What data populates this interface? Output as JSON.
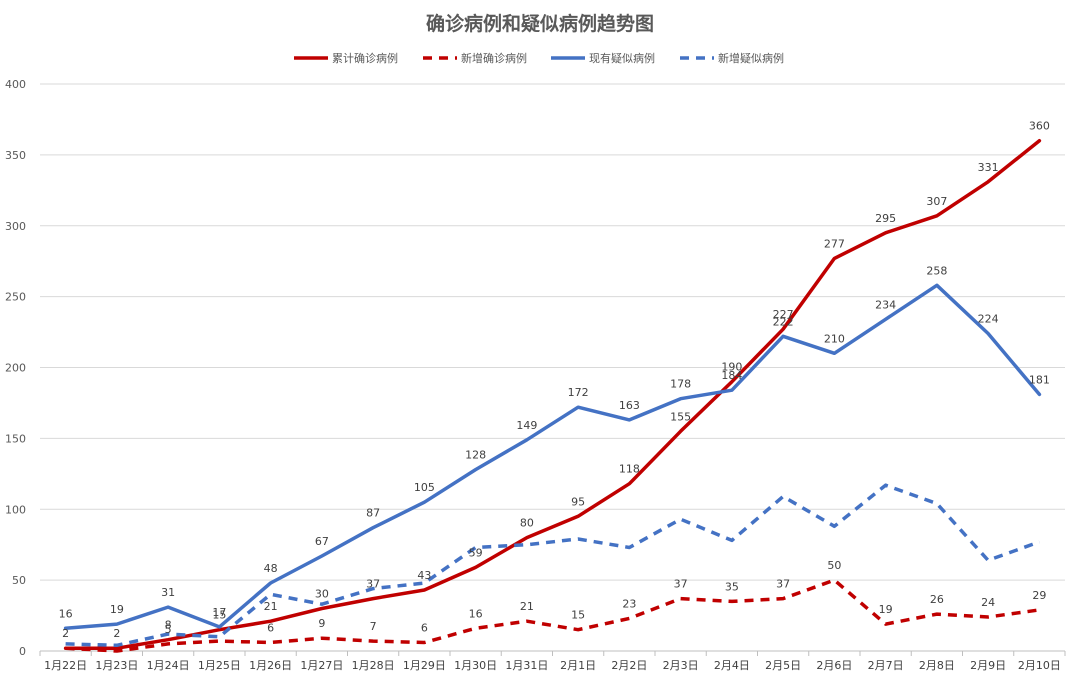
{
  "chart_data": {
    "type": "line",
    "title": "确诊病例和疑似病例趋势图",
    "categories": [
      "1月22日",
      "1月23日",
      "1月24日",
      "1月25日",
      "1月26日",
      "1月27日",
      "1月28日",
      "1月29日",
      "1月30日",
      "1月31日",
      "2月1日",
      "2月2日",
      "2月3日",
      "2月4日",
      "2月5日",
      "2月6日",
      "2月7日",
      "2月8日",
      "2月9日",
      "2月10日"
    ],
    "ylim": [
      0,
      400
    ],
    "yticks": [
      0,
      50,
      100,
      150,
      200,
      250,
      300,
      350,
      400
    ],
    "grid": true,
    "legend_position": "top",
    "series": [
      {
        "name": "累计确诊病例",
        "color": "#C00000",
        "dash": "solid",
        "values": [
          2,
          2,
          8,
          15,
          21,
          30,
          37,
          43,
          59,
          80,
          95,
          118,
          155,
          190,
          227,
          277,
          295,
          307,
          331,
          360
        ],
        "labels": [
          "2",
          "2",
          "8",
          "15",
          "21",
          "30",
          "37",
          "43",
          "59",
          "80",
          "95",
          "118",
          "155",
          "190",
          "227",
          "277",
          "295",
          "307",
          "331",
          "360"
        ]
      },
      {
        "name": "新增确诊病例",
        "color": "#C00000",
        "dash": "dashed",
        "values": [
          2,
          0,
          5,
          7,
          6,
          9,
          7,
          6,
          16,
          21,
          15,
          23,
          37,
          35,
          37,
          50,
          19,
          26,
          24,
          29
        ],
        "labels": [
          "",
          "",
          "5",
          "",
          "6",
          "9",
          "7",
          "6",
          "16",
          "21",
          "15",
          "23",
          "37",
          "35",
          "37",
          "50",
          "19",
          "26",
          "24",
          "29"
        ]
      },
      {
        "name": "现有疑似病例",
        "color": "#4472C4",
        "dash": "solid",
        "values": [
          16,
          19,
          31,
          17,
          48,
          67,
          87,
          105,
          128,
          149,
          172,
          163,
          178,
          184,
          222,
          210,
          234,
          258,
          224,
          181
        ],
        "labels": [
          "16",
          "19",
          "31",
          "17",
          "48",
          "67",
          "87",
          "105",
          "128",
          "149",
          "172",
          "163",
          "178",
          "184",
          "222",
          "210",
          "234",
          "258",
          "224",
          "181"
        ]
      },
      {
        "name": "新增疑似病例",
        "color": "#4472C4",
        "dash": "dashed",
        "values": [
          5,
          4,
          12,
          10,
          40,
          33,
          44,
          48,
          73,
          75,
          79,
          73,
          93,
          78,
          109,
          88,
          117,
          104,
          64,
          77
        ],
        "labels": [
          "",
          "",
          "",
          "",
          "",
          "",
          "",
          "",
          "",
          "",
          "",
          "",
          "",
          "",
          "",
          "",
          "",
          "",
          "",
          ""
        ]
      }
    ]
  }
}
